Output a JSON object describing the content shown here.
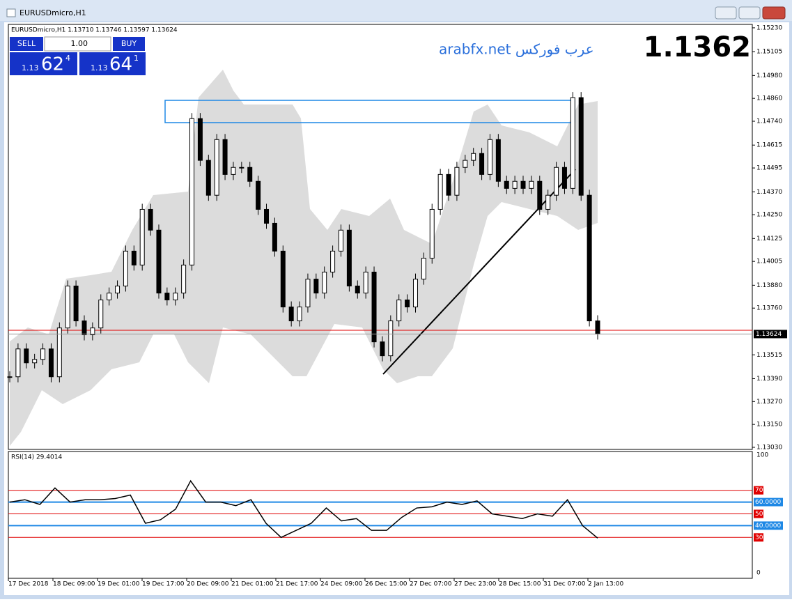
{
  "window": {
    "title": "EURUSDmicro,H1"
  },
  "header": {
    "symbol_line": "EURUSDmicro,H1  1.13710 1.13746 1.13597 1.13624"
  },
  "trade_panel": {
    "sell": "SELL",
    "buy": "BUY",
    "volume": "1.00",
    "bid_big": "1.13",
    "bid_main": "62",
    "bid_small": "4",
    "ask_big": "1.13",
    "ask_main": "64",
    "ask_small": "1"
  },
  "watermark": "arabfx.net عرب فوركس",
  "big_price": "1.1362",
  "chart_data": {
    "type": "candlestick",
    "ylim": [
      1.13019,
      1.15248
    ],
    "yticks": [
      {
        "value": 1.1523,
        "label": "1.15230"
      },
      {
        "value": 1.15105,
        "label": "1.15105"
      },
      {
        "value": 1.1498,
        "label": "1.14980"
      },
      {
        "value": 1.1486,
        "label": "1.14860"
      },
      {
        "value": 1.1474,
        "label": "1.14740"
      },
      {
        "value": 1.14615,
        "label": "1.14615"
      },
      {
        "value": 1.14495,
        "label": "1.14495"
      },
      {
        "value": 1.1437,
        "label": "1.14370"
      },
      {
        "value": 1.1425,
        "label": "1.14250"
      },
      {
        "value": 1.14125,
        "label": "1.14125"
      },
      {
        "value": 1.14005,
        "label": "1.14005"
      },
      {
        "value": 1.1388,
        "label": "1.13880"
      },
      {
        "value": 1.1376,
        "label": "1.13760"
      },
      {
        "value": 1.13515,
        "label": "1.13515"
      },
      {
        "value": 1.1339,
        "label": "1.13390"
      },
      {
        "value": 1.1327,
        "label": "1.13270"
      },
      {
        "value": 1.1315,
        "label": "1.13150"
      },
      {
        "value": 1.1303,
        "label": "1.13030"
      }
    ],
    "current_price": {
      "value": 1.13624,
      "label": "1.13624"
    },
    "categories": [
      "17 Dec 2018",
      "18 Dec 09:00",
      "19 Dec 01:00",
      "19 Dec 17:00",
      "20 Dec 09:00",
      "21 Dec 01:00",
      "21 Dec 17:00",
      "24 Dec 09:00",
      "26 Dec 15:00",
      "27 Dec 07:00",
      "27 Dec 23:00",
      "28 Dec 15:00",
      "31 Dec 07:00",
      "2 Jan 13:00"
    ],
    "closes": [
      1.134,
      1.13546,
      1.13473,
      1.13491,
      1.13546,
      1.134,
      1.13656,
      1.13876,
      1.13693,
      1.1362,
      1.13656,
      1.13803,
      1.13839,
      1.13876,
      1.14059,
      1.13986,
      1.14278,
      1.14169,
      1.13839,
      1.13803,
      1.13839,
      1.13986,
      1.14754,
      1.14535,
      1.14352,
      1.14644,
      1.14461,
      1.14498,
      1.14498,
      1.14425,
      1.14278,
      1.14205,
      1.14059,
      1.13766,
      1.13693,
      1.13766,
      1.13912,
      1.13839,
      1.13949,
      1.14059,
      1.14169,
      1.13876,
      1.13839,
      1.13949,
      1.13583,
      1.1351,
      1.13693,
      1.13803,
      1.13766,
      1.13912,
      1.14022,
      1.14278,
      1.14461,
      1.14352,
      1.14498,
      1.14535,
      1.14571,
      1.14461,
      1.14644,
      1.14425,
      1.14388,
      1.14425,
      1.14388,
      1.14425,
      1.14278,
      1.14352,
      1.14498,
      1.14388,
      1.14864,
      1.14352,
      1.13693,
      1.13624
    ]
  },
  "rsi": {
    "label": "RSI(14) 29.4014",
    "ylim": [
      0,
      100
    ],
    "yticks": [
      100,
      0
    ],
    "levels": [
      {
        "value": 70,
        "color": "#e00000"
      },
      {
        "value": 60,
        "label": "60.0000",
        "color": "#1e88e5"
      },
      {
        "value": 50,
        "color": "#e00000"
      },
      {
        "value": 40,
        "label": "40.0000",
        "color": "#1e88e5"
      },
      {
        "value": 30,
        "color": "#e00000"
      }
    ],
    "values": [
      60,
      62,
      58,
      72,
      60,
      62,
      62,
      63,
      66,
      42,
      45,
      54,
      78,
      60,
      60,
      57,
      62,
      42,
      30,
      36,
      42,
      55,
      44,
      46,
      36,
      36,
      47,
      55,
      56,
      60,
      58,
      61,
      50,
      48,
      46,
      50,
      48,
      62,
      40,
      29.4014
    ]
  }
}
